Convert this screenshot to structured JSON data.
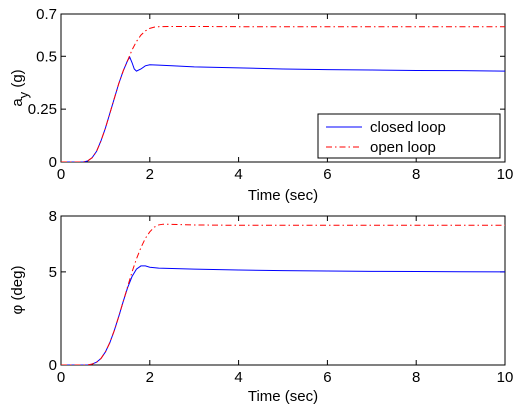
{
  "chart_data": [
    {
      "type": "line",
      "xlabel": "Time (sec)",
      "ylabel": "a",
      "ylabel_subscript": "y",
      "ylabel_suffix": " (g)",
      "xlim": [
        0,
        10
      ],
      "ylim": [
        0,
        0.7
      ],
      "xticks": [
        0,
        2,
        4,
        6,
        8,
        10
      ],
      "xtick_labels": [
        "0",
        "2",
        "4",
        "6",
        "8",
        "10"
      ],
      "yticks": [
        0,
        0.25,
        0.5,
        0.7
      ],
      "ytick_labels": [
        "0",
        "0.25",
        "0.5",
        "0.7"
      ],
      "grid": false,
      "legend": {
        "placement": "bottom-right",
        "entries": [
          {
            "label": "closed loop",
            "color": "#0000ff",
            "style": "solid"
          },
          {
            "label": "open loop",
            "color": "#ff0000",
            "style": "dashdot"
          }
        ]
      },
      "series": [
        {
          "name": "closed loop",
          "color": "#0000ff",
          "style": "solid",
          "x": [
            0,
            0.5,
            0.6,
            0.7,
            0.8,
            0.9,
            1.0,
            1.1,
            1.2,
            1.3,
            1.4,
            1.5,
            1.55,
            1.6,
            1.65,
            1.7,
            1.8,
            1.9,
            2.0,
            2.2,
            2.5,
            3,
            4,
            5,
            6,
            7,
            8,
            9,
            10
          ],
          "y": [
            0,
            0,
            0.005,
            0.02,
            0.05,
            0.1,
            0.16,
            0.23,
            0.3,
            0.37,
            0.43,
            0.48,
            0.495,
            0.47,
            0.44,
            0.43,
            0.44,
            0.455,
            0.46,
            0.458,
            0.455,
            0.45,
            0.445,
            0.44,
            0.437,
            0.435,
            0.433,
            0.432,
            0.43
          ]
        },
        {
          "name": "open loop",
          "color": "#ff0000",
          "style": "dashdot",
          "x": [
            0,
            0.5,
            0.6,
            0.7,
            0.8,
            0.9,
            1.0,
            1.1,
            1.2,
            1.3,
            1.4,
            1.5,
            1.6,
            1.7,
            1.8,
            1.9,
            2.0,
            2.1,
            2.2,
            2.5,
            3,
            4,
            5,
            6,
            7,
            8,
            9,
            10
          ],
          "y": [
            0,
            0,
            0.005,
            0.02,
            0.05,
            0.1,
            0.16,
            0.23,
            0.3,
            0.37,
            0.43,
            0.48,
            0.53,
            0.57,
            0.6,
            0.62,
            0.632,
            0.638,
            0.64,
            0.641,
            0.641,
            0.64,
            0.64,
            0.64,
            0.64,
            0.64,
            0.64,
            0.64
          ]
        }
      ]
    },
    {
      "type": "line",
      "xlabel": "Time (sec)",
      "ylabel": "φ (deg)",
      "xlim": [
        0,
        10
      ],
      "ylim": [
        0,
        8
      ],
      "xticks": [
        0,
        2,
        4,
        6,
        8,
        10
      ],
      "xtick_labels": [
        "0",
        "2",
        "4",
        "6",
        "8",
        "10"
      ],
      "yticks": [
        0,
        5,
        8
      ],
      "ytick_labels": [
        "0",
        "5",
        "8"
      ],
      "grid": false,
      "series": [
        {
          "name": "closed loop",
          "color": "#0000ff",
          "style": "solid",
          "x": [
            0,
            0.6,
            0.7,
            0.8,
            0.9,
            1.0,
            1.1,
            1.2,
            1.3,
            1.4,
            1.5,
            1.6,
            1.7,
            1.8,
            1.9,
            2.0,
            2.2,
            2.5,
            3,
            4,
            5,
            6,
            7,
            8,
            9,
            10
          ],
          "y": [
            0,
            0,
            0.05,
            0.15,
            0.35,
            0.7,
            1.2,
            1.85,
            2.6,
            3.4,
            4.15,
            4.75,
            5.15,
            5.32,
            5.32,
            5.25,
            5.2,
            5.18,
            5.15,
            5.1,
            5.07,
            5.05,
            5.03,
            5.02,
            5.01,
            5.0
          ]
        },
        {
          "name": "open loop",
          "color": "#ff0000",
          "style": "dashdot",
          "x": [
            0,
            0.6,
            0.7,
            0.8,
            0.9,
            1.0,
            1.1,
            1.2,
            1.3,
            1.4,
            1.5,
            1.6,
            1.7,
            1.8,
            1.9,
            2.0,
            2.1,
            2.2,
            2.3,
            2.5,
            3,
            4,
            5,
            6,
            7,
            8,
            9,
            10
          ],
          "y": [
            0,
            0,
            0.05,
            0.15,
            0.35,
            0.7,
            1.2,
            1.85,
            2.6,
            3.4,
            4.2,
            5.0,
            5.7,
            6.3,
            6.8,
            7.15,
            7.4,
            7.52,
            7.56,
            7.55,
            7.52,
            7.5,
            7.5,
            7.5,
            7.5,
            7.5,
            7.5,
            7.5
          ]
        }
      ]
    }
  ]
}
